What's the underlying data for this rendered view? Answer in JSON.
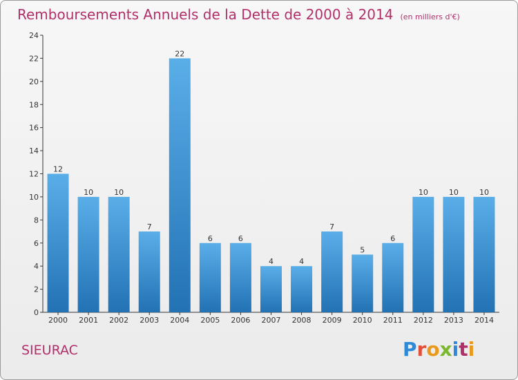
{
  "header": {
    "title": "Remboursements Annuels de la Dette de 2000 à 2014",
    "unit": "(en milliers d'€)"
  },
  "footer": {
    "location": "SIEURAC",
    "brand": "Proxiti"
  },
  "colors": {
    "title": "#b0306a",
    "bar_top": "#5aaee8",
    "bar_bottom": "#2272b4",
    "axis": "#333333"
  },
  "chart_data": {
    "type": "bar",
    "title": "Remboursements Annuels de la Dette de 2000 à 2014",
    "subtitle": "(en milliers d'€)",
    "categories": [
      "2000",
      "2001",
      "2002",
      "2003",
      "2004",
      "2005",
      "2006",
      "2007",
      "2008",
      "2009",
      "2010",
      "2011",
      "2012",
      "2013",
      "2014"
    ],
    "values": [
      12,
      10,
      10,
      7,
      22,
      6,
      6,
      4,
      4,
      7,
      5,
      6,
      10,
      10,
      10
    ],
    "ylim": [
      0,
      24
    ],
    "yticks": [
      0,
      2,
      4,
      6,
      8,
      10,
      12,
      14,
      16,
      18,
      20,
      22,
      24
    ],
    "grid": false,
    "legend": "none"
  }
}
